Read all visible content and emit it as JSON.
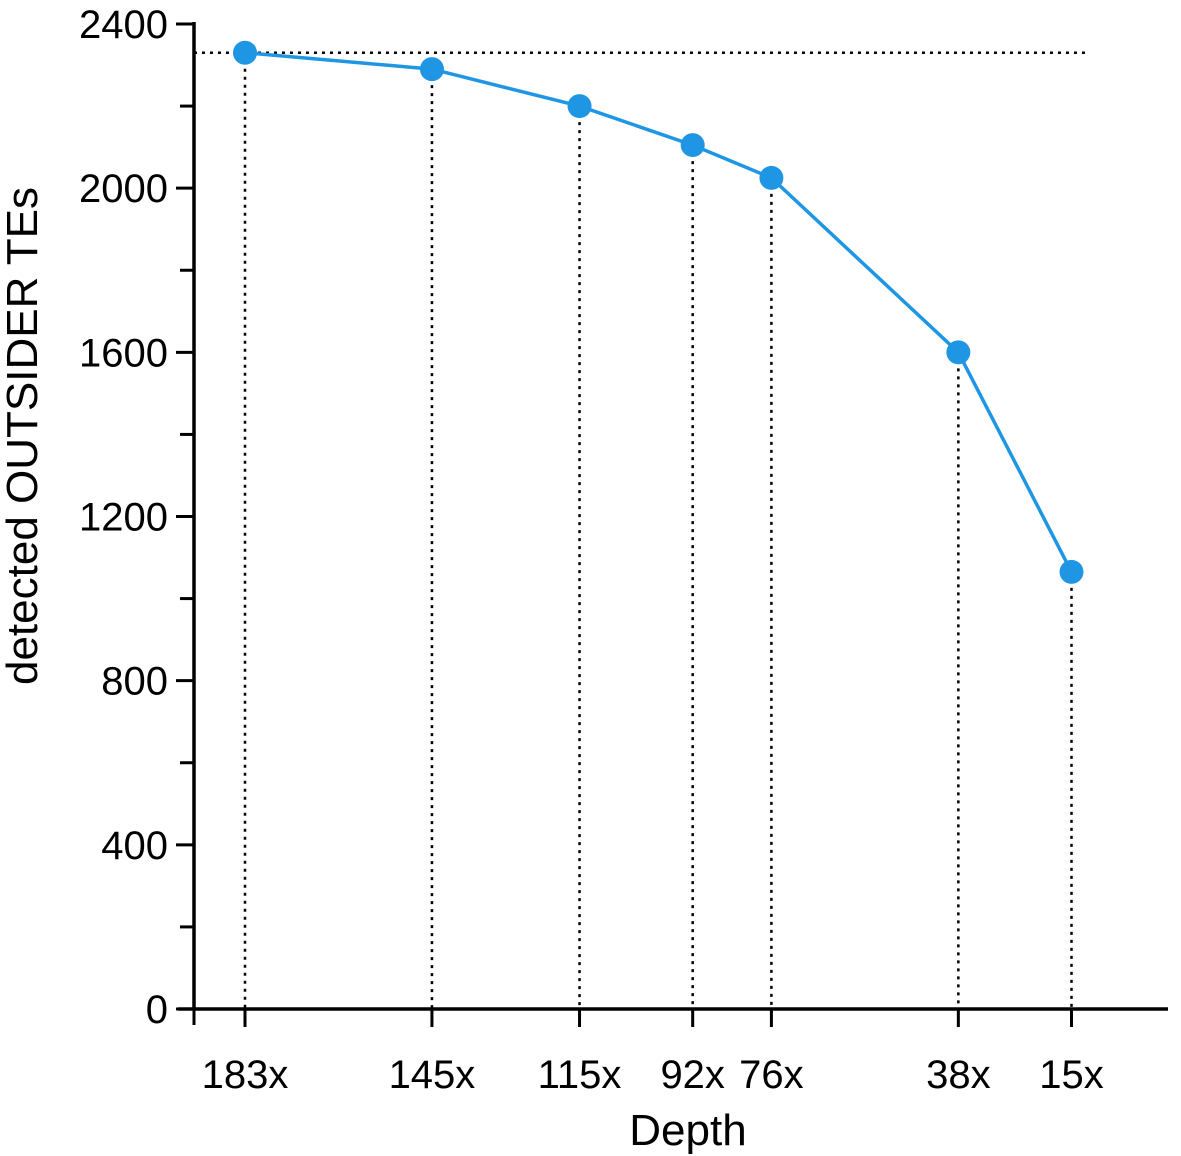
{
  "chart_data": {
    "type": "line",
    "title": "",
    "xlabel": "Depth",
    "ylabel": "detected OUTSIDER TEs",
    "categories": [
      "183x",
      "145x",
      "115x",
      "92x",
      "76x",
      "38x",
      "15x"
    ],
    "x_depth": [
      183,
      145,
      115,
      92,
      76,
      38,
      15
    ],
    "series": [
      {
        "values": [
          2330,
          2290,
          2200,
          2105,
          2025,
          1600,
          1065
        ]
      }
    ],
    "ylim": [
      0,
      2400
    ],
    "yticks": [
      "0",
      "400",
      "800",
      "1200",
      "1600",
      "2000",
      "2400"
    ],
    "reference_line_y": 2330,
    "grid": false,
    "legend": "none",
    "colors": {
      "series": "#1e96e4",
      "axis": "#000000"
    }
  }
}
